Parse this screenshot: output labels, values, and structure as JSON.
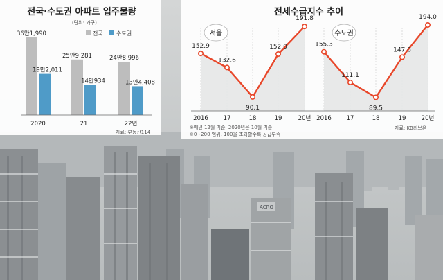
{
  "left_title": "전국·수도권 아파트 입주물량",
  "left_unit": "(단위: 가구)",
  "left_source": "자료: 부동산114",
  "right_title": "전세수급지수 추이",
  "right_notes": [
    "※매년 12월 기준, 2020년은 10월 기준",
    "※0~200 범위, 100을 초과할수록 공급부족"
  ],
  "right_source": "자료: KB리브온",
  "photo_caption": "ACRO",
  "colors": {
    "national": "#bdbdbd",
    "capital": "#4f9bc8",
    "line": "#e8472a",
    "marker_fill": "#ffffff"
  },
  "chart_data": [
    {
      "type": "bar",
      "title": "전국·수도권 아파트 입주물량",
      "unit": "(단위: 가구)",
      "categories": [
        "2020",
        "21",
        "22년"
      ],
      "series": [
        {
          "name": "전국",
          "values": [
            361990,
            259281,
            248996
          ],
          "labels": [
            "36만1,990",
            "25만9,281",
            "24만8,996"
          ]
        },
        {
          "name": "수도권",
          "values": [
            192011,
            140934,
            134408
          ],
          "labels": [
            "19만2,011",
            "14만934",
            "13만4,408"
          ]
        }
      ],
      "legend": "top-right",
      "grid": false
    },
    {
      "type": "line",
      "title": "서울",
      "x": [
        "2016",
        "17",
        "18",
        "19",
        "20년"
      ],
      "values": [
        152.9,
        132.6,
        90.1,
        152.0,
        191.8
      ],
      "labels": [
        "152.9",
        "132.6",
        "90.1",
        "152.0",
        "191.8"
      ],
      "grid": true
    },
    {
      "type": "line",
      "title": "수도권",
      "x": [
        "2016",
        "17",
        "18",
        "19",
        "20년"
      ],
      "values": [
        155.3,
        111.1,
        89.5,
        147.6,
        194.0
      ],
      "labels": [
        "155.3",
        "111.1",
        "89.5",
        "147.6",
        "194.0"
      ],
      "grid": true
    }
  ]
}
